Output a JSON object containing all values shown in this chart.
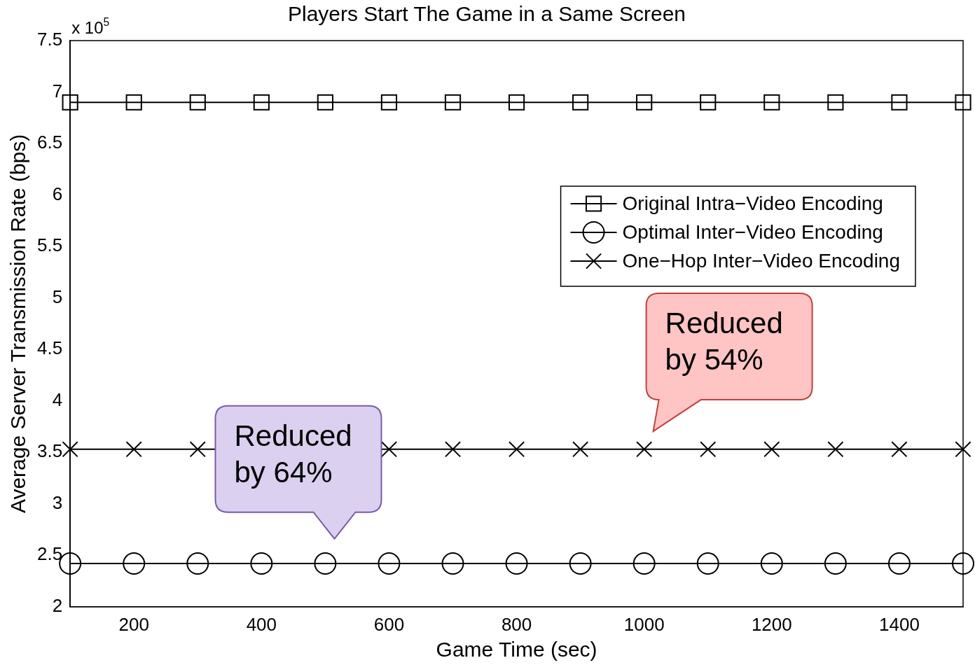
{
  "chart_data": {
    "type": "line",
    "title": "Players Start The Game in a Same Screen",
    "xlabel": "Game Time (sec)",
    "ylabel": "Average Server Transmission Rate (bps)",
    "x": [
      100,
      200,
      300,
      400,
      500,
      600,
      700,
      800,
      900,
      1000,
      1100,
      1200,
      1300,
      1400,
      1500
    ],
    "series": [
      {
        "name": "Original Intra−Video Encoding",
        "color": "#000000",
        "marker": "square",
        "values": [
          6.9,
          6.9,
          6.9,
          6.9,
          6.9,
          6.9,
          6.9,
          6.9,
          6.9,
          6.9,
          6.9,
          6.9,
          6.9,
          6.9,
          6.9
        ]
      },
      {
        "name": "Optimal Inter−Video Encoding",
        "color": "#000000",
        "marker": "circle",
        "values": [
          2.42,
          2.42,
          2.42,
          2.42,
          2.42,
          2.42,
          2.42,
          2.42,
          2.42,
          2.42,
          2.42,
          2.42,
          2.42,
          2.42,
          2.42
        ]
      },
      {
        "name": "One−Hop Inter−Video Encoding",
        "color": "#000000",
        "marker": "cross",
        "values": [
          3.53,
          3.53,
          3.53,
          null,
          null,
          3.53,
          3.53,
          3.53,
          3.53,
          3.53,
          3.53,
          3.53,
          3.53,
          3.53,
          3.53
        ]
      }
    ],
    "xlim": [
      100,
      1500
    ],
    "xticks": [
      200,
      400,
      600,
      800,
      1000,
      1200,
      1400
    ],
    "ylim": [
      2,
      7.5
    ],
    "yticks": [
      2,
      2.5,
      3,
      3.5,
      4,
      4.5,
      5,
      5.5,
      6,
      6.5,
      7,
      7.5
    ],
    "annotations": [
      "x 10$^{5}$",
      "Reduced by 64%",
      "Reduced by 54%"
    ],
    "grid": false,
    "legend": "right",
    "line_style": "solid"
  }
}
